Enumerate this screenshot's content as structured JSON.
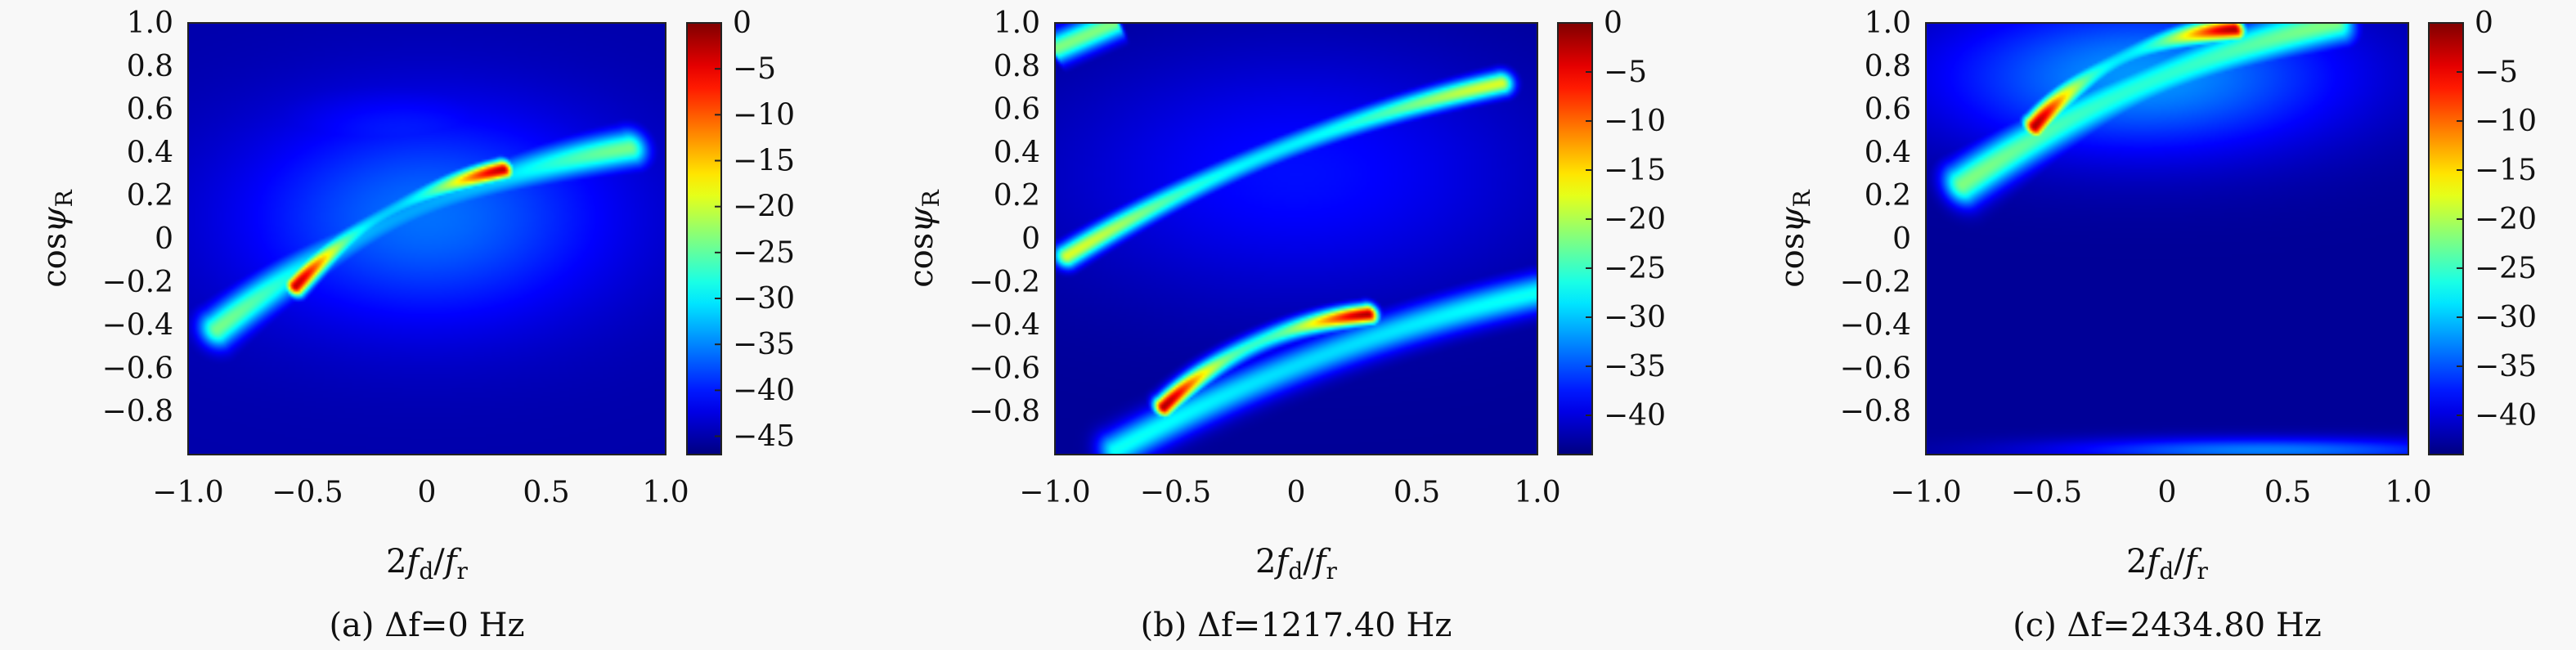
{
  "chart_data": [
    {
      "type": "heatmap",
      "caption": "(a) Δf=0 Hz",
      "xlabel": "2f_d/f_r",
      "ylabel": "cosψ_R",
      "xlim": [
        -1.0,
        1.0
      ],
      "ylim": [
        -1.0,
        1.0
      ],
      "x_ticks": [
        "−1.0",
        "−0.5",
        "0",
        "0.5",
        "1.0"
      ],
      "x_tick_values": [
        -1.0,
        -0.5,
        0,
        0.5,
        1.0
      ],
      "y_ticks": [
        "1.0",
        "0.8",
        "0.6",
        "0.4",
        "0.2",
        "0",
        "−0.2",
        "−0.4",
        "−0.6",
        "−0.8"
      ],
      "y_tick_values": [
        1.0,
        0.8,
        0.6,
        0.4,
        0.2,
        0,
        -0.2,
        -0.4,
        -0.6,
        -0.8
      ],
      "colorbar": {
        "range": [
          -47,
          0
        ],
        "ticks": [
          "0",
          "−5",
          "−10",
          "−15",
          "−20",
          "−25",
          "−30",
          "−35",
          "−40",
          "−45"
        ],
        "tick_values": [
          0,
          -5,
          -10,
          -15,
          -20,
          -25,
          -30,
          -35,
          -40,
          -45
        ]
      },
      "background_db": -45,
      "ridges": [
        {
          "x": [
            -0.88,
            0.85
          ],
          "y": [
            -0.42,
            0.42
          ],
          "curv": 0.15,
          "peak_db": -24,
          "width": 0.06
        },
        {
          "x": [
            -0.55,
            0.32
          ],
          "y": [
            -0.22,
            0.32
          ],
          "curv": 0.1,
          "peak_db": -3,
          "width": 0.035
        }
      ],
      "blobs": [
        {
          "x": 0.0,
          "y": 0.1,
          "sx": 0.55,
          "sy": 0.35,
          "peak_db": -36
        },
        {
          "x": -0.1,
          "y": 0.5,
          "sx": 0.4,
          "sy": 0.15,
          "peak_db": -40
        }
      ]
    },
    {
      "type": "heatmap",
      "caption": "(b) Δf=1217.40 Hz",
      "xlabel": "2f_d/f_r",
      "ylabel": "cosψ_R",
      "xlim": [
        -1.0,
        1.0
      ],
      "ylim": [
        -1.0,
        1.0
      ],
      "x_ticks": [
        "−1.0",
        "−0.5",
        "0",
        "0.5",
        "1.0"
      ],
      "x_tick_values": [
        -1.0,
        -0.5,
        0,
        0.5,
        1.0
      ],
      "y_ticks": [
        "1.0",
        "0.8",
        "0.6",
        "0.4",
        "0.2",
        "0",
        "−0.2",
        "−0.4",
        "−0.6",
        "−0.8"
      ],
      "y_tick_values": [
        1.0,
        0.8,
        0.6,
        0.4,
        0.2,
        0,
        -0.2,
        -0.4,
        -0.6,
        -0.8
      ],
      "colorbar": {
        "range": [
          -44,
          0
        ],
        "ticks": [
          "0",
          "−5",
          "−10",
          "−15",
          "−20",
          "−25",
          "−30",
          "−35",
          "−40"
        ],
        "tick_values": [
          0,
          -5,
          -10,
          -15,
          -20,
          -25,
          -30,
          -35,
          -40
        ]
      },
      "background_db": -43,
      "ridges": [
        {
          "x": [
            -0.95,
            0.85
          ],
          "y": [
            -0.08,
            0.72
          ],
          "curv": 0.1,
          "peak_db": -18,
          "width": 0.04
        },
        {
          "x": [
            -0.55,
            0.3
          ],
          "y": [
            -0.78,
            -0.35
          ],
          "curv": 0.1,
          "peak_db": -2,
          "width": 0.035
        },
        {
          "x": [
            -0.75,
            1.0
          ],
          "y": [
            -0.98,
            -0.25
          ],
          "curv": 0.08,
          "peak_db": -27,
          "width": 0.06
        },
        {
          "x": [
            -1.0,
            -0.75
          ],
          "y": [
            0.88,
            1.0
          ],
          "curv": 0.0,
          "peak_db": -22,
          "width": 0.05
        }
      ],
      "blobs": [
        {
          "x": 0.0,
          "y": 0.3,
          "sx": 0.7,
          "sy": 0.4,
          "peak_db": -38
        }
      ]
    },
    {
      "type": "heatmap",
      "caption": "(c) Δf=2434.80 Hz",
      "xlabel": "2f_d/f_r",
      "ylabel": "cosψ_R",
      "xlim": [
        -1.0,
        1.0
      ],
      "ylim": [
        -1.0,
        1.0
      ],
      "x_ticks": [
        "−1.0",
        "−0.5",
        "0",
        "0.5",
        "1.0"
      ],
      "x_tick_values": [
        -1.0,
        -0.5,
        0,
        0.5,
        1.0
      ],
      "y_ticks": [
        "1.0",
        "0.8",
        "0.6",
        "0.4",
        "0.2",
        "0",
        "−0.2",
        "−0.4",
        "−0.6",
        "−0.8"
      ],
      "y_tick_values": [
        1.0,
        0.8,
        0.6,
        0.4,
        0.2,
        0,
        -0.2,
        -0.4,
        -0.6,
        -0.8
      ],
      "colorbar": {
        "range": [
          -44,
          0
        ],
        "ticks": [
          "0",
          "−5",
          "−10",
          "−15",
          "−20",
          "−25",
          "−30",
          "−35",
          "−40"
        ],
        "tick_values": [
          0,
          -5,
          -10,
          -15,
          -20,
          -25,
          -30,
          -35,
          -40
        ]
      },
      "background_db": -43,
      "ridges": [
        {
          "x": [
            -0.85,
            0.7
          ],
          "y": [
            0.25,
            1.0
          ],
          "curv": 0.1,
          "peak_db": -22,
          "width": 0.07
        },
        {
          "x": [
            -0.55,
            0.28
          ],
          "y": [
            0.52,
            0.97
          ],
          "curv": 0.12,
          "peak_db": -2,
          "width": 0.04
        }
      ],
      "blobs": [
        {
          "x": -0.1,
          "y": 0.75,
          "sx": 0.6,
          "sy": 0.25,
          "peak_db": -32
        },
        {
          "x": 0.4,
          "y": -0.98,
          "sx": 0.6,
          "sy": 0.04,
          "peak_db": -33
        }
      ]
    }
  ]
}
